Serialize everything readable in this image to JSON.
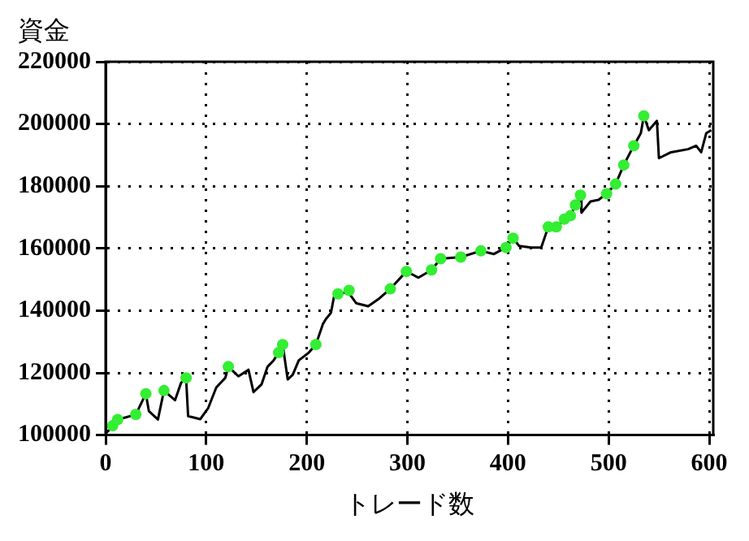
{
  "chart_data": {
    "type": "line",
    "ylabel": "資金",
    "xlabel": "トレード数",
    "xlim": [
      0,
      604
    ],
    "xticks": [
      0,
      100,
      200,
      300,
      400,
      500,
      600
    ],
    "ylim": [
      100000,
      220000
    ],
    "yticks": [
      100000,
      120000,
      140000,
      160000,
      180000,
      200000,
      220000
    ],
    "grid": true,
    "legend": false,
    "series": [
      {
        "color": "#000000",
        "marker": "none",
        "x": [
          0,
          3,
          7,
          12,
          18,
          30,
          40,
          43,
          52,
          58,
          69,
          75,
          80,
          82,
          94,
          102,
          110,
          119,
          122,
          132,
          142,
          147,
          155,
          161,
          167,
          172,
          176,
          181,
          186,
          192,
          202,
          209,
          216,
          219,
          224,
          227,
          231,
          241,
          249,
          261,
          272,
          283,
          299,
          311,
          319,
          324,
          333,
          353,
          373,
          386,
          398,
          405,
          411,
          423,
          433,
          440,
          448,
          456,
          462,
          467,
          472,
          473,
          482,
          490,
          498,
          507,
          515,
          525,
          532,
          535,
          540,
          548,
          550,
          562,
          579,
          587,
          592,
          597,
          602
        ],
        "values": [
          100500,
          101500,
          103000,
          105000,
          105500,
          106600,
          113300,
          107700,
          105000,
          114300,
          111200,
          116800,
          118400,
          106100,
          105100,
          108700,
          115300,
          118400,
          122000,
          118900,
          121000,
          113800,
          116300,
          122000,
          124000,
          126500,
          129100,
          117900,
          119400,
          124000,
          126500,
          129100,
          135700,
          137300,
          139300,
          144400,
          145400,
          146000,
          142400,
          141400,
          143900,
          147000,
          152600,
          150600,
          152100,
          153100,
          156700,
          157200,
          159200,
          158200,
          160300,
          163300,
          160800,
          160300,
          160300,
          166900,
          166900,
          169400,
          170500,
          174000,
          177100,
          171500,
          175100,
          175600,
          177600,
          180700,
          186800,
          193000,
          197000,
          202600,
          198000,
          201000,
          189000,
          190900,
          191900,
          193000,
          190900,
          197000,
          198000
        ]
      },
      {
        "type": "scatter",
        "color": "#33ee33",
        "marker": "circle",
        "x": [
          7,
          12,
          30,
          40,
          58,
          80,
          122,
          172,
          176,
          209,
          231,
          242,
          283,
          299,
          324,
          333,
          353,
          373,
          398,
          405,
          440,
          448,
          456,
          462,
          467,
          472,
          498,
          507,
          515,
          525,
          535
        ],
        "values": [
          103000,
          105000,
          106600,
          113300,
          114300,
          118400,
          122000,
          126500,
          129100,
          129100,
          145400,
          146500,
          147000,
          152600,
          153100,
          156700,
          157200,
          159200,
          160300,
          163300,
          166900,
          166900,
          169400,
          170500,
          174000,
          177100,
          177600,
          180700,
          186800,
          193000,
          202600
        ]
      }
    ]
  }
}
